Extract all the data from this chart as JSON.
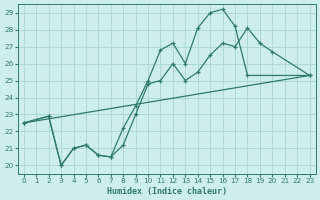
{
  "xlabel": "Humidex (Indice chaleur)",
  "bg_color": "#ceeeed",
  "grid_color": "#aed8d5",
  "line_color": "#2e7b6e",
  "xlim": [
    -0.5,
    23.5
  ],
  "ylim": [
    19.5,
    29.5
  ],
  "xticks": [
    0,
    1,
    2,
    3,
    4,
    5,
    6,
    7,
    8,
    9,
    10,
    11,
    12,
    13,
    14,
    15,
    16,
    17,
    18,
    19,
    20,
    21,
    22,
    23
  ],
  "yticks": [
    20,
    21,
    22,
    23,
    24,
    25,
    26,
    27,
    28,
    29
  ],
  "line1_x": [
    0,
    2,
    3,
    4,
    5,
    6,
    7,
    8,
    9,
    10,
    11,
    12,
    13,
    14,
    15,
    16,
    17,
    18,
    23
  ],
  "line1_y": [
    22.5,
    22.9,
    20.0,
    21.0,
    21.2,
    20.6,
    20.5,
    22.2,
    23.5,
    25.0,
    26.8,
    27.2,
    26.0,
    28.1,
    29.0,
    29.2,
    28.2,
    25.3,
    25.3
  ],
  "line2_x": [
    0,
    2,
    3,
    4,
    5,
    6,
    7,
    8,
    9,
    10,
    11,
    12,
    13,
    14,
    15,
    16,
    17,
    18,
    19,
    20,
    23
  ],
  "line2_y": [
    22.5,
    22.9,
    20.0,
    21.0,
    21.2,
    20.6,
    20.5,
    21.2,
    23.0,
    24.8,
    25.0,
    26.0,
    25.0,
    25.5,
    26.5,
    27.2,
    27.0,
    28.1,
    27.2,
    26.7,
    25.3
  ],
  "line3_x": [
    0,
    23
  ],
  "line3_y": [
    22.5,
    25.3
  ]
}
